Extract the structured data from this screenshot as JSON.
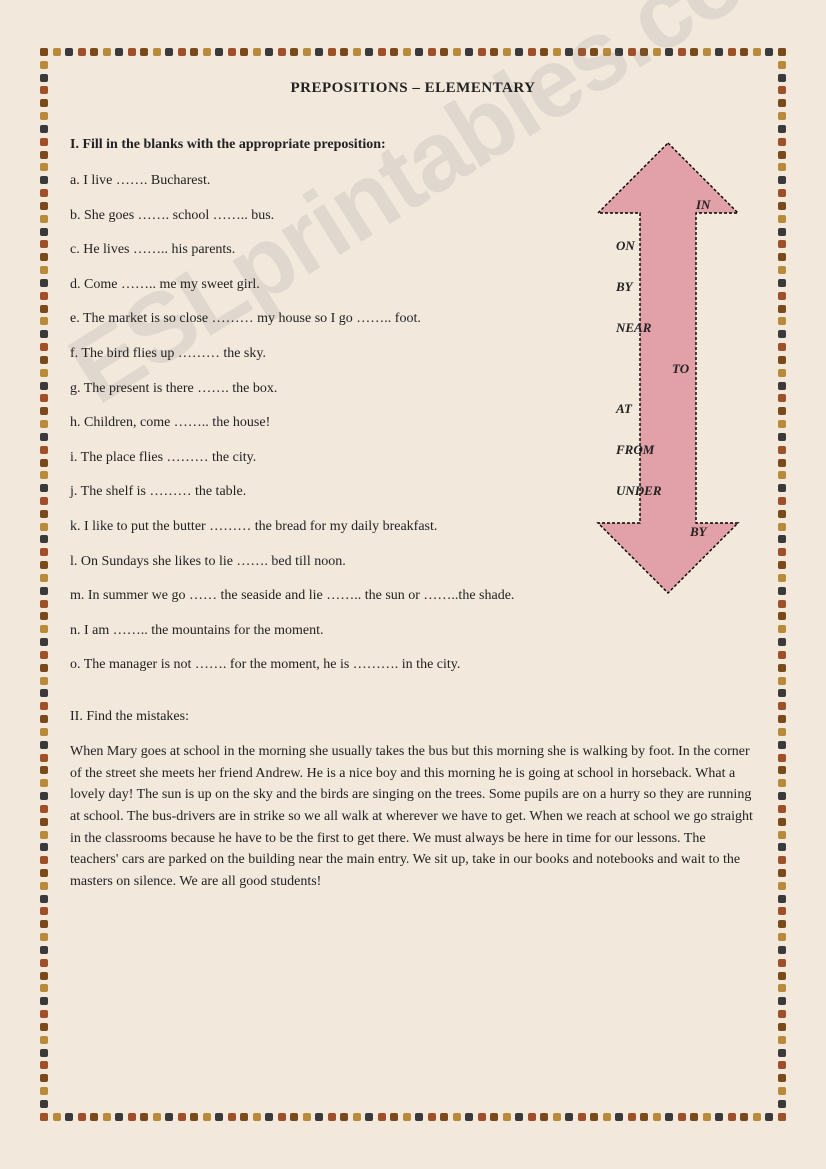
{
  "page": {
    "title": "PREPOSITIONS – ELEMENTARY",
    "watermark": "ESLprintables.com",
    "background_color": "#f2e8dc"
  },
  "border": {
    "dot_colors": [
      "#7a4a1a",
      "#b88a3a",
      "#3a3a3a",
      "#a05028"
    ],
    "dot_size": 8,
    "h_count": 60,
    "v_count": 84
  },
  "arrow": {
    "fill": "#e2a0a8",
    "stroke": "#000000",
    "stroke_dasharray": "3 2",
    "labels": [
      "IN",
      "ON",
      "BY",
      "NEAR",
      "TO",
      "AT",
      "FROM",
      "UNDER",
      "BY"
    ]
  },
  "section1": {
    "heading": "I. Fill in the blanks with the appropriate preposition:",
    "items": [
      "a. I live ……. Bucharest.",
      "b. She goes ……. school …….. bus.",
      "c. He lives …….. his parents.",
      "d. Come …….. me my sweet girl.",
      "e. The market is so close ……… my house so I go …….. foot.",
      "f. The bird flies up ……… the sky.",
      "g. The present is there ……. the box.",
      "h. Children, come …….. the house!",
      "i. The place flies ……… the city.",
      "j. The shelf is ……… the table.",
      "k. I like to put the butter ……… the bread for my daily breakfast.",
      "l. On Sundays she likes to lie ……. bed till noon.",
      "m. In summer we go …… the seaside and lie …….. the sun or ……..the shade.",
      "n. I am …….. the mountains for the moment.",
      "o. The manager is not ……. for the moment, he is ………. in the city."
    ]
  },
  "section2": {
    "heading": "II.  Find the mistakes:",
    "paragraph": "When Mary goes at school in the morning she usually takes the bus but this morning she is walking by foot. In the corner of the street she meets her friend Andrew. He is a nice boy and this morning he is going at school in horseback. What a lovely day! The sun is up on the sky and the birds are singing on the trees. Some pupils are on a hurry so they are running at school. The bus-drivers are in strike so we all walk at wherever we have to get. When we reach at school we go straight in the classrooms because he have to be the first to get there. We must always be here in time for our lessons. The teachers' cars are parked on the building near the main entry. We sit up, take in our books and notebooks and wait to the masters on silence. We are all good students!"
  }
}
